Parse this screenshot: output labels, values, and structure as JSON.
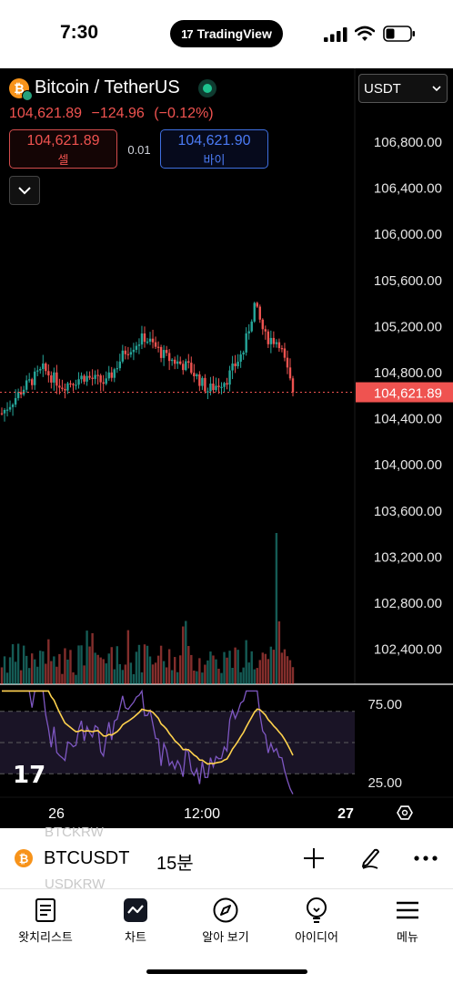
{
  "status_bar": {
    "time": "7:30",
    "app_badge": "TradingView"
  },
  "header": {
    "symbol_name": "Bitcoin / TetherUS",
    "last_price": "104,621.89",
    "change": "−124.96",
    "change_pct": "(−0.12%)",
    "currency_select": "USDT",
    "sell_price": "104,621.89",
    "sell_label": "셀",
    "buy_price": "104,621.90",
    "buy_label": "바이",
    "spread": "0.01"
  },
  "colors": {
    "up": "#26a69a",
    "down": "#ef5350",
    "rsi_line": "#7e57c2",
    "rsi_ma": "#ffd24d",
    "background": "#000000"
  },
  "chart_data": {
    "type": "candlestick",
    "symbol": "BTCUSDT",
    "interval": "15분",
    "price_axis_ticks": [
      "106,800.00",
      "106,400.00",
      "106,000.00",
      "105,600.00",
      "105,200.00",
      "104,800.00",
      "104,400.00",
      "104,000.00",
      "103,600.00",
      "103,200.00",
      "102,800.00",
      "102,400.00"
    ],
    "ylim": [
      102300,
      107000
    ],
    "current_price_label": "104,621.89",
    "current_price": 104621.89,
    "time_axis_ticks": [
      "26",
      "12:00",
      "27"
    ],
    "rsi": {
      "ticks": [
        "75.00",
        "25.00"
      ],
      "levels": [
        70,
        50,
        30
      ],
      "range": [
        15,
        85
      ]
    },
    "volume_spike_index": 100
  },
  "toolbar": {
    "ghost_top": "BTCKRW",
    "ghost_bottom": "USDKRW",
    "symbol": "BTCUSDT",
    "interval": "15분"
  },
  "tabs": [
    {
      "label": "왓치리스트",
      "icon": "watchlist-icon"
    },
    {
      "label": "차트",
      "icon": "chart-icon"
    },
    {
      "label": "알아 보기",
      "icon": "compass-icon"
    },
    {
      "label": "아이디어",
      "icon": "lightbulb-icon"
    },
    {
      "label": "메뉴",
      "icon": "menu-icon"
    }
  ]
}
